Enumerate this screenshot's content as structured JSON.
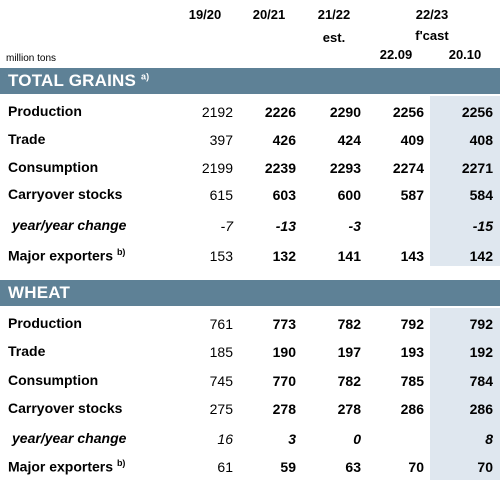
{
  "header": {
    "cols": [
      "19/20",
      "20/21",
      "21/22",
      "22/23"
    ],
    "col3_sub": "est.",
    "col4_sub": "f'cast",
    "date1": "22.09",
    "date2": "20.10",
    "unit": "million tons"
  },
  "sections": [
    {
      "title": "TOTAL GRAINS",
      "note": "a)",
      "rows": [
        {
          "label": "Production",
          "note": "",
          "values": [
            "2192",
            "2226",
            "2290",
            "2256",
            "2256"
          ]
        },
        {
          "label": "Trade",
          "note": "",
          "values": [
            "397",
            "426",
            "424",
            "409",
            "408"
          ]
        },
        {
          "label": "Consumption",
          "note": "",
          "values": [
            "2199",
            "2239",
            "2293",
            "2274",
            "2271"
          ]
        },
        {
          "label": "Carryover stocks",
          "note": "",
          "values": [
            "615",
            "603",
            "600",
            "587",
            "584"
          ]
        },
        {
          "label": "year/year change",
          "note": "",
          "values": [
            "-7",
            "-13",
            "-3",
            "",
            "-15"
          ]
        },
        {
          "label": "Major exporters",
          "note": "b)",
          "values": [
            "153",
            "132",
            "141",
            "143",
            "142"
          ]
        }
      ]
    },
    {
      "title": "WHEAT",
      "note": "",
      "rows": [
        {
          "label": "Production",
          "note": "",
          "values": [
            "761",
            "773",
            "782",
            "792",
            "792"
          ]
        },
        {
          "label": "Trade",
          "note": "",
          "values": [
            "185",
            "190",
            "197",
            "193",
            "192"
          ]
        },
        {
          "label": "Consumption",
          "note": "",
          "values": [
            "745",
            "770",
            "782",
            "785",
            "784"
          ]
        },
        {
          "label": "Carryover stocks",
          "note": "",
          "values": [
            "275",
            "278",
            "278",
            "286",
            "286"
          ]
        },
        {
          "label": "year/year change",
          "note": "",
          "values": [
            "16",
            "3",
            "0",
            "",
            "8"
          ]
        },
        {
          "label": "Major exporters",
          "note": "b)",
          "values": [
            "61",
            "59",
            "63",
            "70",
            "70"
          ]
        }
      ]
    }
  ],
  "colors": {
    "band": "#5e8196",
    "highlight": "#dfe7ef"
  }
}
